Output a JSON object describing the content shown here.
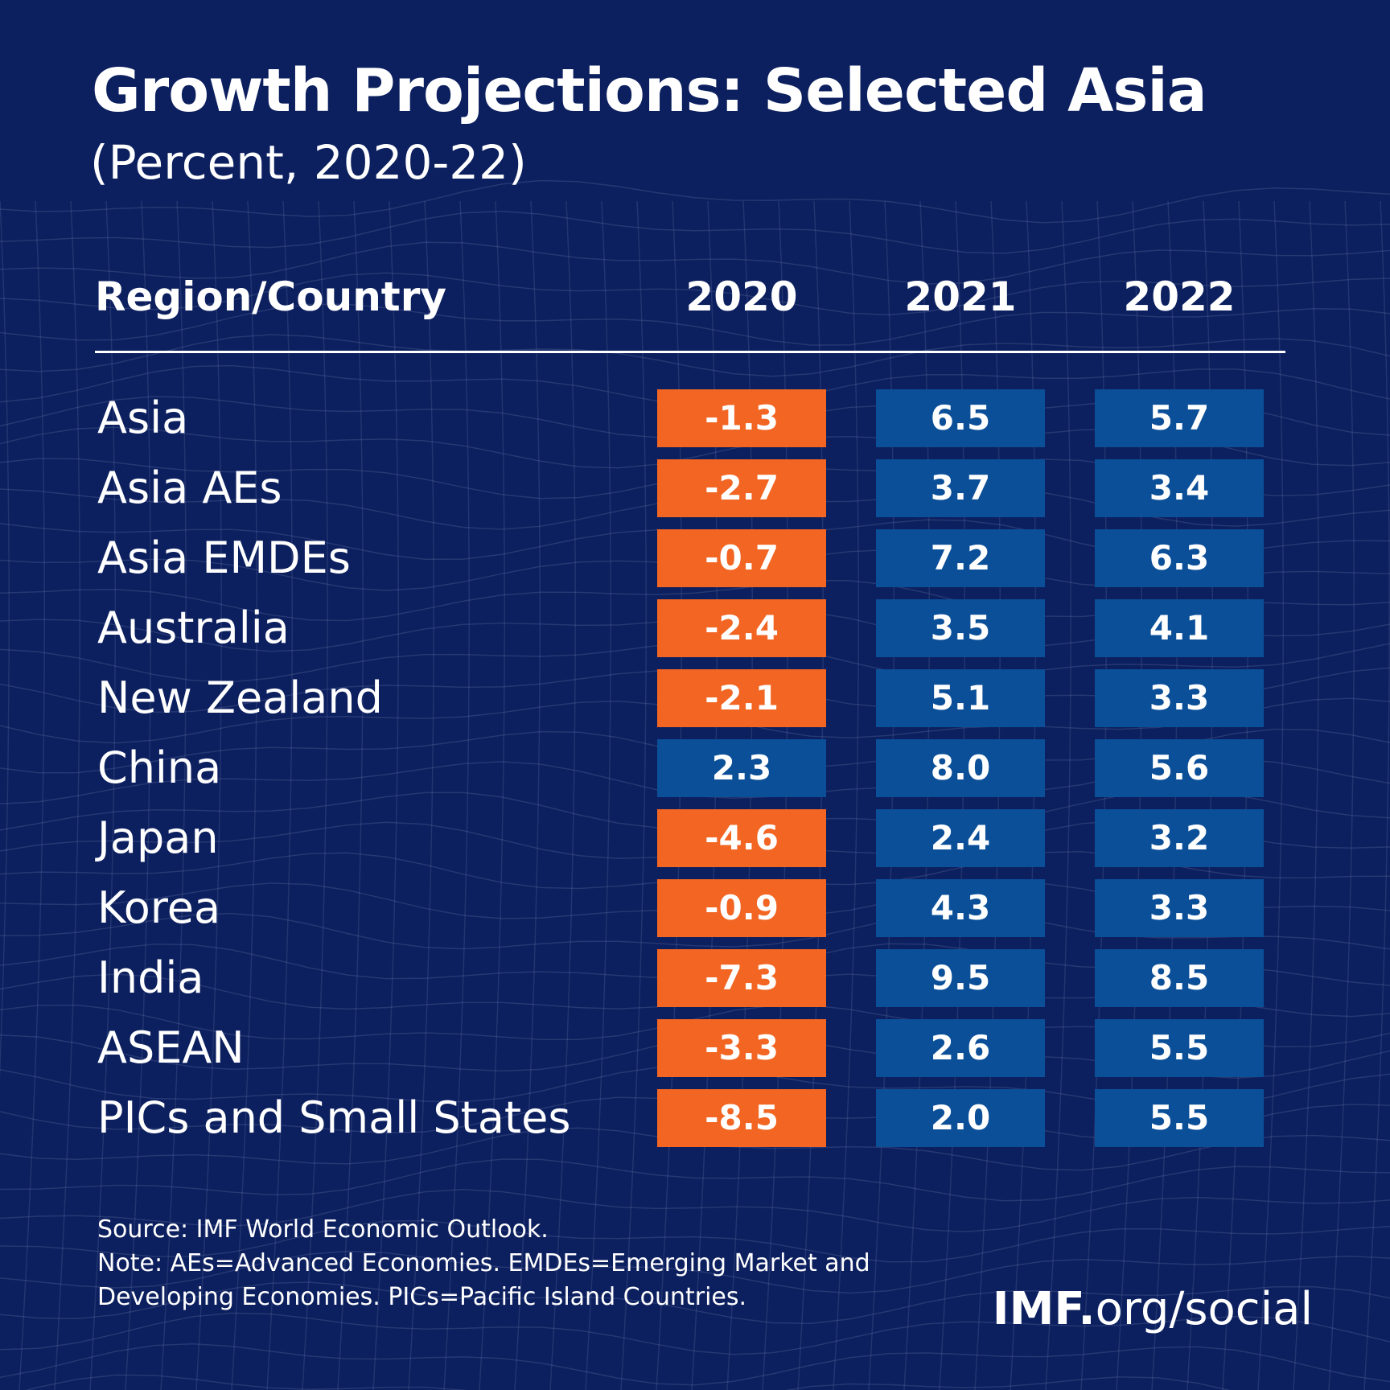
{
  "header": {
    "title": "Growth Projections: Selected Asia",
    "subtitle": "(Percent, 2020-22)"
  },
  "table": {
    "columns": [
      "Region/Country",
      "2020",
      "2021",
      "2022"
    ],
    "colors": {
      "negative": "#f26522",
      "positive": "#0b4f98"
    },
    "rows": [
      [
        "Asia",
        "-1.3",
        "6.5",
        "5.7"
      ],
      [
        "Asia AEs",
        "-2.7",
        "3.7",
        "3.4"
      ],
      [
        "Asia EMDEs",
        "-0.7",
        "7.2",
        "6.3"
      ],
      [
        "Australia",
        "-2.4",
        "3.5",
        "4.1"
      ],
      [
        "New Zealand",
        "-2.1",
        "5.1",
        "3.3"
      ],
      [
        "China",
        "2.3",
        "8.0",
        "5.6"
      ],
      [
        "Japan",
        "-4.6",
        "2.4",
        "3.2"
      ],
      [
        "Korea",
        "-0.9",
        "4.3",
        "3.3"
      ],
      [
        "India",
        "-7.3",
        "9.5",
        "8.5"
      ],
      [
        "ASEAN",
        "-3.3",
        "2.6",
        "5.5"
      ],
      [
        "PICs and Small States",
        "-8.5",
        "2.0",
        "5.5"
      ]
    ]
  },
  "footer": {
    "source": "Source: IMF World Economic Outlook.",
    "note": "Note: AEs=Advanced Economies. EMDEs=Emerging Market and Developing Economies. PICs=Pacific Island Countries.",
    "brand": [
      "IMF.",
      "org/social"
    ]
  }
}
